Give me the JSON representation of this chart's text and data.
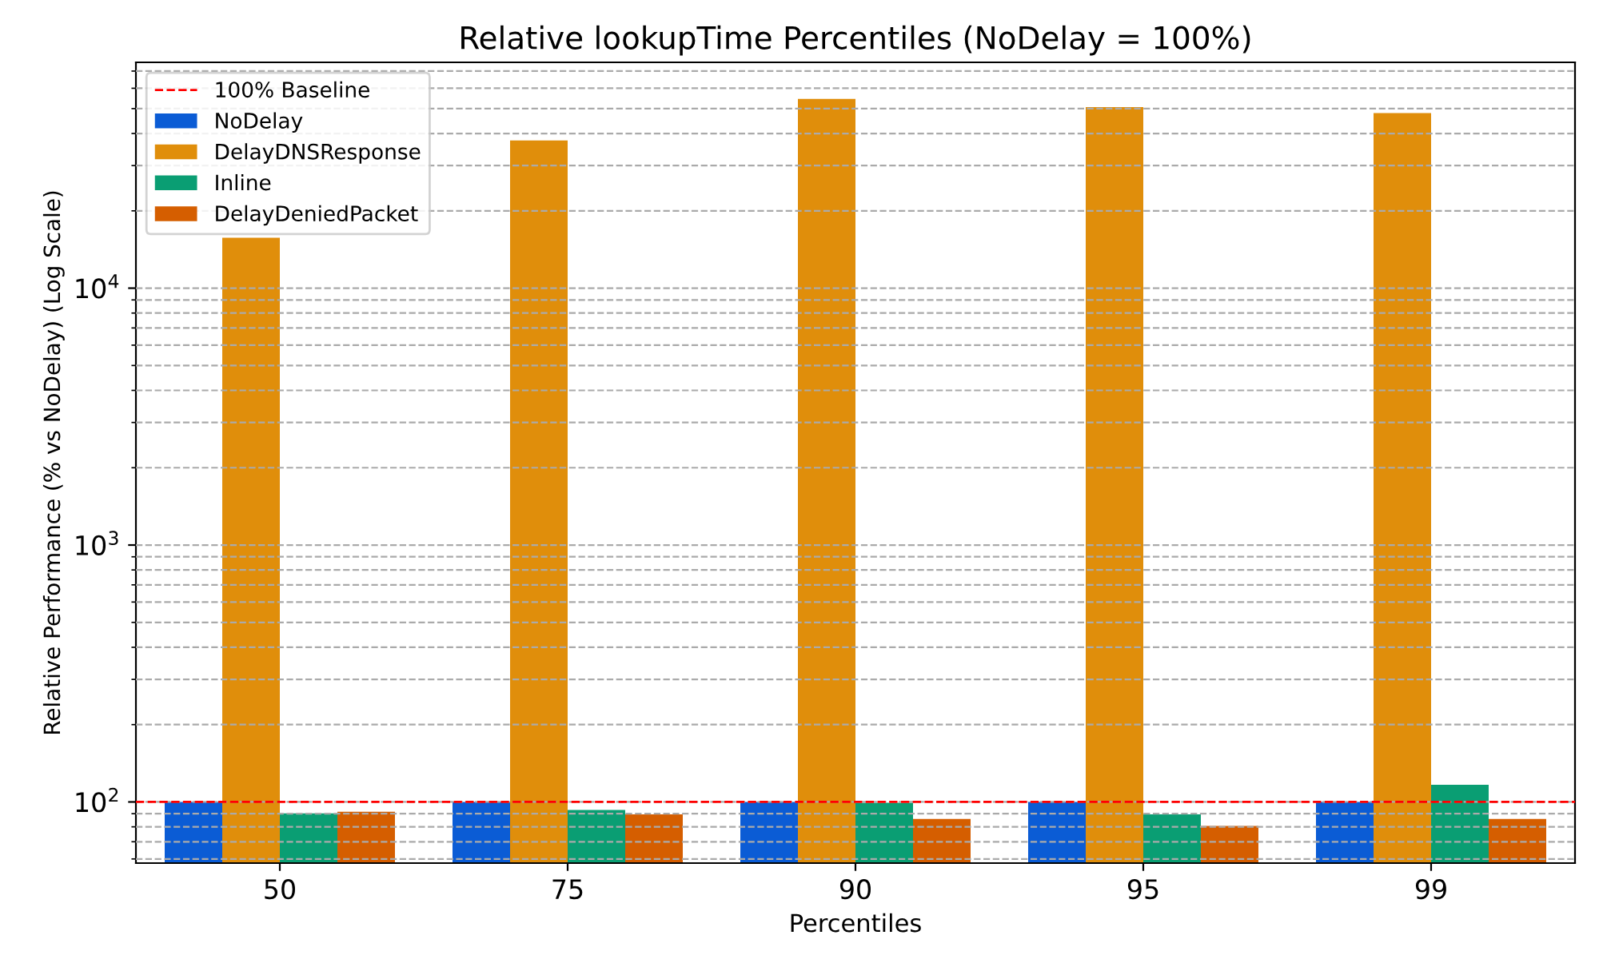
{
  "chart_data": {
    "type": "bar",
    "title": "Relative lookupTime Percentiles (NoDelay = 100%)",
    "xlabel": "Percentiles",
    "ylabel": "Relative Performance (% vs NoDelay) (Log Scale)",
    "categories": [
      "50",
      "75",
      "90",
      "95",
      "99"
    ],
    "series": [
      {
        "name": "NoDelay",
        "color": "#0b5cd5",
        "values": [
          100,
          100,
          100,
          100,
          100
        ]
      },
      {
        "name": "DelayDNSResponse",
        "color": "#e08e0b",
        "values": [
          15700,
          37600,
          54500,
          50700,
          48000
        ]
      },
      {
        "name": "Inline",
        "color": "#0a9e73",
        "values": [
          90.2,
          93,
          99.3,
          89.4,
          116.7
        ]
      },
      {
        "name": "DelayDeniedPacket",
        "color": "#d55e00",
        "values": [
          91.6,
          89.4,
          85.9,
          80.6,
          85.9
        ]
      }
    ],
    "log": "y",
    "ylim": [
      57.8,
      75700
    ],
    "yticks": [
      {
        "value": 100,
        "label": "10$^{2}$"
      },
      {
        "value": 1000,
        "label": "10$^{3}$"
      },
      {
        "value": 10000,
        "label": "10$^{4}$"
      }
    ],
    "ref_lines": [
      {
        "axis": "y",
        "value": 100,
        "label": "100% Baseline",
        "color": "#ff0000",
        "line_style": "dashed"
      }
    ],
    "grid": "y",
    "legend": "top left"
  }
}
